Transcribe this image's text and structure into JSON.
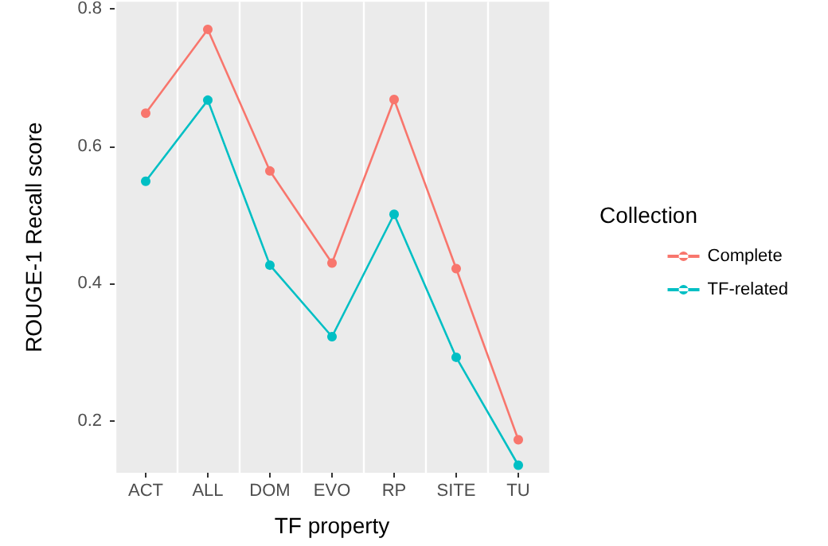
{
  "chart_data": {
    "type": "line",
    "xlabel": "TF property",
    "ylabel": "ROUGE-1 Recall score",
    "legend_title": "Collection",
    "categories": [
      "ACT",
      "ALL",
      "DOM",
      "EVO",
      "RP",
      "SITE",
      "TU"
    ],
    "series": [
      {
        "name": "Complete",
        "color": "#f8766d",
        "values": [
          0.648,
          0.77,
          0.564,
          0.43,
          0.668,
          0.422,
          0.173
        ]
      },
      {
        "name": "TF-related",
        "color": "#00bfc4",
        "values": [
          0.549,
          0.667,
          0.427,
          0.323,
          0.501,
          0.293,
          0.136
        ]
      }
    ],
    "ylim": [
      0.125,
      0.81
    ],
    "yticks": [
      0.2,
      0.4,
      0.6,
      0.8
    ],
    "grid": true,
    "legend": "right",
    "marker": "circle",
    "line_style": "solid"
  }
}
